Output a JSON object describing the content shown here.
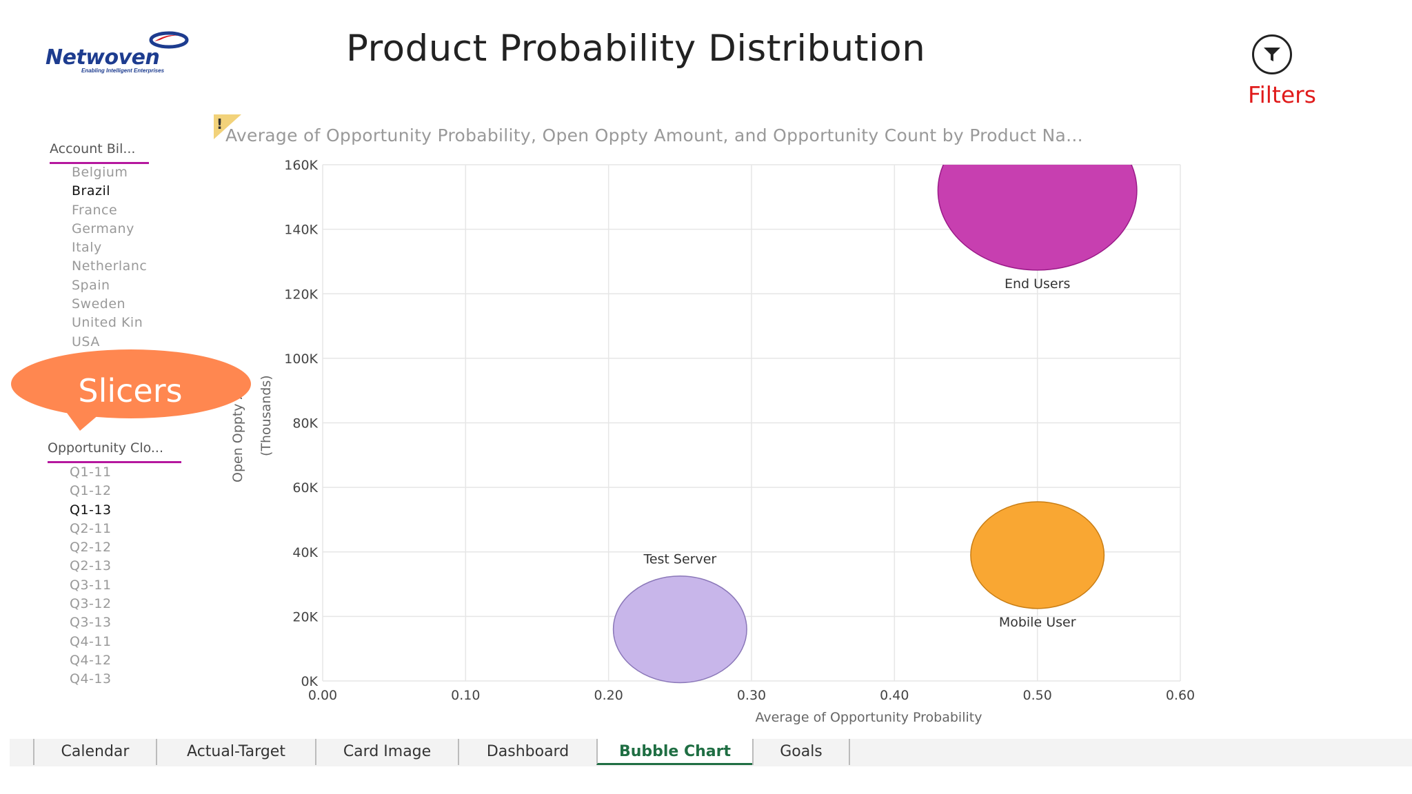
{
  "app": {
    "logo_text": "Netwoven",
    "logo_tagline": "Enabling Intelligent Enterprises",
    "page_title": "Product Probability Distribution",
    "filters_label": "Filters"
  },
  "slicers": [
    {
      "title": "Account Bil...",
      "items": [
        {
          "label": "Belgium",
          "selected": false
        },
        {
          "label": "Brazil",
          "selected": true
        },
        {
          "label": "France",
          "selected": false
        },
        {
          "label": "Germany",
          "selected": false
        },
        {
          "label": "Italy",
          "selected": false
        },
        {
          "label": "Netherlanc",
          "selected": false
        },
        {
          "label": "Spain",
          "selected": false
        },
        {
          "label": "Sweden",
          "selected": false
        },
        {
          "label": "United Kin",
          "selected": false
        },
        {
          "label": "USA",
          "selected": false
        }
      ]
    },
    {
      "title": "Opportunity Clo...",
      "items": [
        {
          "label": "Q1-11",
          "selected": false
        },
        {
          "label": "Q1-12",
          "selected": false
        },
        {
          "label": "Q1-13",
          "selected": true
        },
        {
          "label": "Q2-11",
          "selected": false
        },
        {
          "label": "Q2-12",
          "selected": false
        },
        {
          "label": "Q2-13",
          "selected": false
        },
        {
          "label": "Q3-11",
          "selected": false
        },
        {
          "label": "Q3-12",
          "selected": false
        },
        {
          "label": "Q3-13",
          "selected": false
        },
        {
          "label": "Q4-11",
          "selected": false
        },
        {
          "label": "Q4-12",
          "selected": false
        },
        {
          "label": "Q4-13",
          "selected": false
        }
      ]
    }
  ],
  "callout": {
    "label": "Slicers",
    "color": "#ff8750"
  },
  "chart_data": {
    "type": "scatter",
    "subtype": "bubble",
    "title": "Average of Opportunity Probability, Open Oppty Amount, and Opportunity Count by Product Na...",
    "warning_glyph": "!",
    "xlabel": "Average of Opportunity Probability",
    "ylabel": "Open Oppty Amount",
    "ylabel_visible": "Open Oppty A",
    "ylabel_units": "(Thousands)",
    "xlim": [
      0,
      0.6
    ],
    "ylim": [
      0,
      160
    ],
    "x_ticks": [
      {
        "v": 0,
        "label": "0.00"
      },
      {
        "v": 0.1,
        "label": "0.10"
      },
      {
        "v": 0.2,
        "label": "0.20"
      },
      {
        "v": 0.3,
        "label": "0.30"
      },
      {
        "v": 0.4,
        "label": "0.40"
      },
      {
        "v": 0.5,
        "label": "0.50"
      },
      {
        "v": 0.6,
        "label": "0.60"
      }
    ],
    "y_ticks": [
      {
        "v": 0,
        "label": "0K"
      },
      {
        "v": 20,
        "label": "20K"
      },
      {
        "v": 40,
        "label": "40K"
      },
      {
        "v": 60,
        "label": "60K"
      },
      {
        "v": 80,
        "label": "80K"
      },
      {
        "v": 100,
        "label": "100K"
      },
      {
        "v": 120,
        "label": "120K"
      },
      {
        "v": 140,
        "label": "140K"
      },
      {
        "v": 160,
        "label": "160K"
      }
    ],
    "grid": true,
    "series": [
      {
        "name": "End Users",
        "x": 0.5,
        "y": 152,
        "size": 5,
        "color": "#c73fb0",
        "stroke": "#9a1a88",
        "label_pos": "below"
      },
      {
        "name": "Mobile User",
        "x": 0.5,
        "y": 39,
        "size": 2.25,
        "color": "#f9a733",
        "stroke": "#c87d14",
        "label_pos": "below"
      },
      {
        "name": "Test Server",
        "x": 0.25,
        "y": 16,
        "size": 2.25,
        "color": "#c8b6ea",
        "stroke": "#8a77b8",
        "label_pos": "above"
      }
    ]
  },
  "tabs": [
    {
      "label": "Calendar",
      "active": false
    },
    {
      "label": "Actual-Target",
      "active": false
    },
    {
      "label": "Card Image",
      "active": false
    },
    {
      "label": "Dashboard",
      "active": false
    },
    {
      "label": "Bubble Chart",
      "active": true
    },
    {
      "label": "Goals",
      "active": false
    }
  ]
}
